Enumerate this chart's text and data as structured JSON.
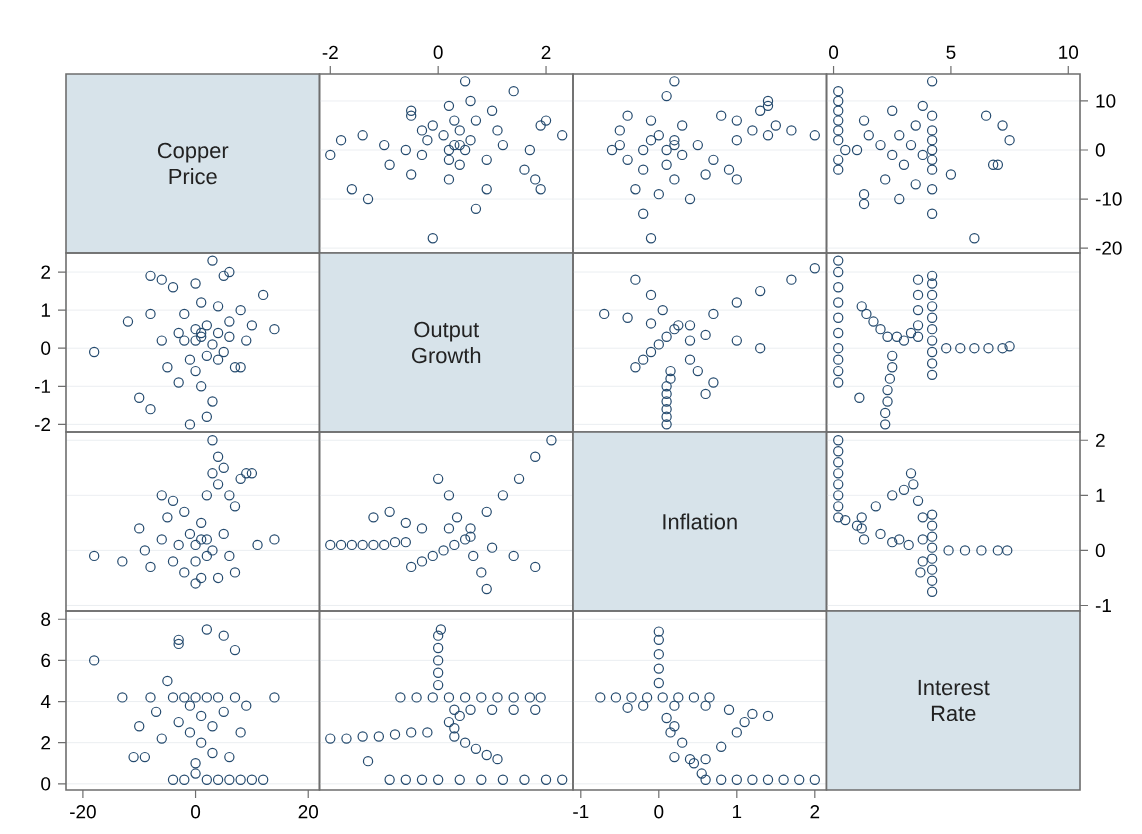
{
  "chart_data": [
    {
      "type": "other",
      "title": "Copper Price",
      "color": "#d7e3ea"
    },
    {
      "type": "scatter",
      "marker": "circle",
      "color": "#244a6e",
      "grid": "y",
      "tick_labels": "x",
      "xlim": [
        -2.2,
        2.5
      ],
      "ylim": [
        -21,
        15.5
      ],
      "xticks": [
        -2,
        0,
        2
      ],
      "yticks": [
        -20,
        -10,
        0,
        10
      ],
      "x": [
        -0.1,
        0.7,
        -1.3,
        1.9,
        -1.6,
        1.8,
        0.9,
        0.2,
        -0.5,
        1.6,
        -0.9,
        0.9,
        0.2,
        -0.3,
        1.7,
        0.5,
        -0.6,
        0.3,
        1.2,
        0.6,
        -0.2,
        -1.8,
        0.1,
        2.3,
        -1.4,
        1.1,
        0.4,
        1.9,
        -0.1,
        2.0,
        0.7,
        -0.5,
        1.0,
        -0.5,
        0.2,
        0.6,
        1.4,
        0.5,
        -2.0,
        -1.0,
        0.2,
        0.4,
        0.4,
        -0.3,
        0.3
      ],
      "values": [
        -18,
        -12,
        -10,
        -8,
        -8,
        -6,
        -8,
        -6,
        -5,
        -4,
        -3,
        -2,
        -2,
        -1,
        0,
        0,
        0,
        1,
        1,
        2,
        2,
        2,
        3,
        3,
        3,
        4,
        4,
        5,
        5,
        6,
        6,
        7,
        8,
        8,
        9,
        10,
        12,
        14,
        -1,
        1,
        0,
        1,
        -3,
        4,
        6
      ]
    },
    {
      "type": "scatter",
      "marker": "circle",
      "color": "#244a6e",
      "grid": "y",
      "tick_labels": false,
      "xlim": [
        -1.1,
        2.15
      ],
      "ylim": [
        -21,
        15.5
      ],
      "yticks": [
        -20,
        -10,
        0,
        10
      ],
      "x": [
        -0.1,
        -0.2,
        0.4,
        0.0,
        -0.3,
        0.2,
        0.6,
        -0.2,
        0.1,
        0.7,
        -0.4,
        0.3,
        -0.2,
        0.1,
        0.5,
        -0.5,
        0.2,
        -0.1,
        0.0,
        2.0,
        1.7,
        1.2,
        1.5,
        0.3,
        1.0,
        -0.1,
        0.8,
        -0.4,
        1.3,
        1.4,
        1.4,
        0.1,
        0.2,
        1.0,
        0.9,
        -0.6,
        1.0,
        -0.5,
        1.4,
        0.2
      ],
      "values": [
        -18,
        -13,
        -10,
        -9,
        -8,
        -6,
        -5,
        -4,
        -3,
        -2,
        -2,
        -1,
        0,
        0,
        1,
        1,
        2,
        2,
        3,
        3,
        4,
        4,
        5,
        5,
        6,
        6,
        7,
        7,
        8,
        9,
        10,
        11,
        14,
        -6,
        -4,
        0,
        2,
        4,
        3,
        1
      ]
    },
    {
      "type": "scatter",
      "marker": "circle",
      "color": "#244a6e",
      "grid": "y",
      "xlim": [
        -0.3,
        10.5
      ],
      "ylim": [
        -21,
        15.5
      ],
      "xticks": [
        0,
        5,
        10
      ],
      "yticks": [
        -20,
        -10,
        0,
        10
      ],
      "x": [
        6.0,
        4.2,
        2.8,
        1.3,
        4.2,
        3.5,
        2.2,
        5.0,
        4.2,
        0.2,
        6.8,
        7.0,
        3.0,
        4.2,
        0.2,
        2.5,
        3.8,
        4.2,
        1.0,
        0.5,
        3.3,
        2.0,
        4.2,
        7.5,
        0.2,
        2.8,
        1.5,
        4.2,
        0.2,
        7.2,
        3.5,
        0.2,
        1.3,
        6.5,
        4.2,
        0.2,
        2.5,
        3.8,
        0.2,
        0.2,
        4.2,
        1.3
      ],
      "values": [
        -18,
        -13,
        -10,
        -9,
        -8,
        -7,
        -6,
        -5,
        -4,
        -4,
        -3,
        -3,
        -3,
        -2,
        -2,
        -1,
        -1,
        0,
        0,
        0,
        1,
        1,
        2,
        2,
        2,
        3,
        3,
        4,
        4,
        5,
        5,
        6,
        6,
        7,
        7,
        8,
        8,
        9,
        10,
        12,
        14,
        -11
      ]
    },
    {
      "type": "scatter",
      "marker": "circle",
      "color": "#244a6e",
      "grid": "y",
      "tick_labels": "y",
      "xlim": [
        -23,
        22
      ],
      "ylim": [
        -2.2,
        2.5
      ],
      "yticks": [
        -2,
        -1,
        0,
        1,
        2
      ],
      "x": [
        -18,
        -12,
        -10,
        -8,
        -8,
        -6,
        -8,
        -6,
        -5,
        -4,
        -3,
        -2,
        -2,
        -1,
        0,
        0,
        0,
        1,
        1,
        2,
        2,
        2,
        3,
        3,
        3,
        4,
        4,
        5,
        5,
        6,
        6,
        7,
        8,
        8,
        9,
        10,
        12,
        14,
        -1,
        1,
        0,
        1,
        -3,
        4,
        6
      ],
      "values": [
        -0.1,
        0.7,
        -1.3,
        1.9,
        -1.6,
        1.8,
        0.9,
        0.2,
        -0.5,
        1.6,
        -0.9,
        0.9,
        0.2,
        -0.3,
        1.7,
        0.5,
        -0.6,
        0.3,
        1.2,
        0.6,
        -0.2,
        -1.8,
        0.1,
        2.3,
        -1.4,
        1.1,
        0.4,
        1.9,
        -0.1,
        2.0,
        0.7,
        -0.5,
        1.0,
        -0.5,
        0.2,
        0.6,
        1.4,
        0.5,
        -2.0,
        -1.0,
        0.2,
        0.4,
        0.4,
        -0.3,
        0.3
      ]
    },
    {
      "type": "other",
      "title": "Output Growth",
      "color": "#d7e3ea"
    },
    {
      "type": "scatter",
      "marker": "circle",
      "color": "#244a6e",
      "grid": "y",
      "tick_labels": false,
      "xlim": [
        -1.1,
        2.15
      ],
      "ylim": [
        -2.2,
        2.5
      ],
      "yticks": [
        -2,
        -1,
        0,
        1,
        2
      ],
      "x": [
        0.1,
        0.1,
        0.1,
        0.1,
        0.1,
        0.1,
        0.15,
        0.15,
        0.4,
        0.7,
        1.0,
        1.3,
        1.7,
        2.0,
        0.6,
        0.7,
        0.5,
        0.4,
        1.3,
        1.0,
        0.6,
        0.2,
        -0.1,
        -0.4,
        -0.7,
        0.4,
        0.25,
        0.05,
        -0.1,
        -0.3,
        -0.3,
        -0.2,
        -0.1,
        0.0,
        0.1
      ],
      "values": [
        -2,
        -1.8,
        -1.6,
        -1.4,
        -1.2,
        -1,
        -0.8,
        -0.6,
        0.6,
        0.9,
        1.2,
        1.5,
        1.8,
        2.1,
        -1.2,
        -0.9,
        -0.6,
        -0.3,
        0,
        0.2,
        0.35,
        0.5,
        0.65,
        0.8,
        0.9,
        0.2,
        0.6,
        1.0,
        1.4,
        1.8,
        -0.5,
        -0.3,
        -0.1,
        0.1,
        0.3
      ]
    },
    {
      "type": "scatter",
      "marker": "circle",
      "color": "#244a6e",
      "grid": "y",
      "tick_labels": false,
      "xlim": [
        -0.3,
        10.5
      ],
      "ylim": [
        -2.2,
        2.5
      ],
      "yticks": [
        -2,
        -1,
        0,
        1,
        2
      ],
      "x": [
        4.2,
        4.2,
        4.2,
        4.2,
        4.2,
        4.2,
        4.2,
        4.2,
        4.2,
        4.2,
        3.6,
        3.6,
        3.6,
        3.6,
        4.8,
        5.4,
        6.0,
        6.6,
        7.2,
        7.5,
        2.2,
        2.2,
        2.3,
        2.3,
        2.4,
        2.5,
        2.5,
        2.3,
        2.0,
        1.7,
        1.4,
        1.2,
        0.2,
        0.2,
        0.2,
        0.2,
        0.2,
        0.2,
        0.2,
        0.2,
        0.2,
        0.2,
        3.0,
        2.7,
        3.3,
        3.6,
        1.1
      ],
      "values": [
        -0.7,
        -0.4,
        -0.1,
        0.2,
        0.5,
        0.8,
        1.1,
        1.4,
        1.7,
        1.9,
        0.6,
        1.0,
        1.4,
        1.8,
        0,
        0,
        0,
        0,
        0,
        0.05,
        -2,
        -1.7,
        -1.4,
        -1.1,
        -0.8,
        -0.5,
        -0.2,
        0.3,
        0.5,
        0.7,
        0.9,
        1.1,
        -0.9,
        -0.6,
        -0.3,
        0,
        0.4,
        0.8,
        1.2,
        1.6,
        2.0,
        2.3,
        0.2,
        0.3,
        0.4,
        0.3,
        -1.3
      ]
    },
    {
      "type": "scatter",
      "marker": "circle",
      "color": "#244a6e",
      "grid": "y",
      "tick_labels": false,
      "xlim": [
        -23,
        22
      ],
      "ylim": [
        -1.1,
        2.15
      ],
      "yticks": [
        -1,
        0,
        1,
        2
      ],
      "x": [
        -18,
        -13,
        -10,
        -9,
        -8,
        -6,
        -5,
        -4,
        -3,
        -2,
        -2,
        -1,
        0,
        0,
        1,
        1,
        2,
        2,
        3,
        3,
        4,
        4,
        5,
        5,
        6,
        6,
        7,
        7,
        8,
        9,
        10,
        11,
        14,
        -6,
        -4,
        0,
        2,
        4,
        3,
        1
      ],
      "values": [
        -0.1,
        -0.2,
        0.4,
        0.0,
        -0.3,
        0.2,
        0.6,
        -0.2,
        0.1,
        0.7,
        -0.4,
        0.3,
        -0.2,
        0.1,
        0.5,
        -0.5,
        0.2,
        -0.1,
        0.0,
        2.0,
        1.7,
        1.2,
        1.5,
        0.3,
        1.0,
        -0.1,
        0.8,
        -0.4,
        1.3,
        1.4,
        1.4,
        0.1,
        0.2,
        1.0,
        0.9,
        -0.6,
        1.0,
        -0.5,
        1.4,
        0.2
      ]
    },
    {
      "type": "scatter",
      "marker": "circle",
      "color": "#244a6e",
      "grid": "y",
      "tick_labels": false,
      "xlim": [
        -2.2,
        2.5
      ],
      "ylim": [
        -1.1,
        2.15
      ],
      "yticks": [
        -1,
        0,
        1,
        2
      ],
      "x": [
        -2,
        -1.8,
        -1.6,
        -1.4,
        -1.2,
        -1,
        -0.8,
        -0.6,
        0.6,
        0.9,
        1.2,
        1.5,
        1.8,
        2.1,
        -1.2,
        -0.9,
        -0.6,
        -0.3,
        0,
        0.2,
        0.35,
        0.5,
        0.65,
        0.8,
        0.9,
        0.2,
        0.6,
        1.0,
        1.4,
        1.8,
        -0.5,
        -0.3,
        -0.1,
        0.1,
        0.3
      ],
      "values": [
        0.1,
        0.1,
        0.1,
        0.1,
        0.1,
        0.1,
        0.15,
        0.15,
        0.4,
        0.7,
        1.0,
        1.3,
        1.7,
        2.0,
        0.6,
        0.7,
        0.5,
        0.4,
        1.3,
        1.0,
        0.6,
        0.2,
        -0.1,
        -0.4,
        -0.7,
        0.4,
        0.25,
        0.05,
        -0.1,
        -0.3,
        -0.3,
        -0.2,
        -0.1,
        0.0,
        0.1
      ]
    },
    {
      "type": "other",
      "title": "Inflation",
      "color": "#d7e3ea"
    },
    {
      "type": "scatter",
      "marker": "circle",
      "color": "#244a6e",
      "grid": "y",
      "tick_labels": "y",
      "xlim": [
        -0.3,
        10.5
      ],
      "ylim": [
        -1.1,
        2.15
      ],
      "yticks": [
        -1,
        0,
        1,
        2
      ],
      "x": [
        4.2,
        4.2,
        4.2,
        4.2,
        4.2,
        4.2,
        4.2,
        4.2,
        4.9,
        5.6,
        6.3,
        7.0,
        7.4,
        3.7,
        3.8,
        3.8,
        3.8,
        3.6,
        3.4,
        3.3,
        3.2,
        2.8,
        2.5,
        1.3,
        1.2,
        1.2,
        1.8,
        2.5,
        3.0,
        2.0,
        1.0,
        0.5,
        0.2,
        0.2,
        0.2,
        0.2,
        0.2,
        0.2,
        0.2,
        0.2
      ],
      "values": [
        -0.75,
        -0.55,
        -0.35,
        -0.15,
        0.05,
        0.25,
        0.45,
        0.65,
        0,
        0,
        0,
        0,
        0,
        -0.4,
        -0.2,
        0.2,
        0.6,
        0.9,
        1.2,
        1.4,
        0.1,
        0.2,
        0.15,
        0.2,
        0.4,
        0.6,
        0.8,
        1.0,
        1.1,
        0.3,
        0.45,
        0.55,
        0.6,
        0.8,
        1.0,
        1.2,
        1.4,
        1.6,
        1.8,
        2.0
      ]
    },
    {
      "type": "scatter",
      "marker": "circle",
      "color": "#244a6e",
      "grid": "y",
      "xlim": [
        -23,
        22
      ],
      "ylim": [
        -0.3,
        8.4
      ],
      "xticks": [
        -20,
        0,
        20
      ],
      "yticks": [
        0,
        2,
        4,
        6,
        8
      ],
      "x": [
        -18,
        -13,
        -10,
        -9,
        -8,
        -7,
        -6,
        -5,
        -4,
        -4,
        -3,
        -3,
        -3,
        -2,
        -2,
        -1,
        -1,
        0,
        0,
        0,
        1,
        1,
        2,
        2,
        2,
        3,
        3,
        4,
        4,
        5,
        5,
        6,
        6,
        7,
        7,
        8,
        8,
        9,
        10,
        12,
        14,
        -11
      ],
      "values": [
        6.0,
        4.2,
        2.8,
        1.3,
        4.2,
        3.5,
        2.2,
        5.0,
        4.2,
        0.2,
        6.8,
        7.0,
        3.0,
        4.2,
        0.2,
        2.5,
        3.8,
        4.2,
        1.0,
        0.5,
        3.3,
        2.0,
        4.2,
        7.5,
        0.2,
        2.8,
        1.5,
        4.2,
        0.2,
        7.2,
        3.5,
        0.2,
        1.3,
        6.5,
        4.2,
        0.2,
        2.5,
        3.8,
        0.2,
        0.2,
        4.2,
        1.3
      ]
    },
    {
      "type": "scatter",
      "marker": "circle",
      "color": "#244a6e",
      "grid": "y",
      "tick_labels": false,
      "xlim": [
        -2.2,
        2.5
      ],
      "ylim": [
        -0.3,
        8.4
      ],
      "yticks": [
        0,
        2,
        4,
        6,
        8
      ],
      "x": [
        -0.7,
        -0.4,
        -0.1,
        0.2,
        0.5,
        0.8,
        1.1,
        1.4,
        1.7,
        1.9,
        0.6,
        1.0,
        1.4,
        1.8,
        0,
        0,
        0,
        0,
        0,
        0.05,
        -2,
        -1.7,
        -1.4,
        -1.1,
        -0.8,
        -0.5,
        -0.2,
        0.3,
        0.5,
        0.7,
        0.9,
        1.1,
        -0.9,
        -0.6,
        -0.3,
        0,
        0.4,
        0.8,
        1.2,
        1.6,
        2.0,
        2.3,
        0.2,
        0.3,
        0.4,
        0.3,
        -1.3
      ],
      "values": [
        4.2,
        4.2,
        4.2,
        4.2,
        4.2,
        4.2,
        4.2,
        4.2,
        4.2,
        4.2,
        3.6,
        3.6,
        3.6,
        3.6,
        4.8,
        5.4,
        6.0,
        6.6,
        7.2,
        7.5,
        2.2,
        2.2,
        2.3,
        2.3,
        2.4,
        2.5,
        2.5,
        2.3,
        2.0,
        1.7,
        1.4,
        1.2,
        0.2,
        0.2,
        0.2,
        0.2,
        0.2,
        0.2,
        0.2,
        0.2,
        0.2,
        0.2,
        3.0,
        2.7,
        3.3,
        3.6,
        1.1
      ]
    },
    {
      "type": "scatter",
      "marker": "circle",
      "color": "#244a6e",
      "grid": "y",
      "tick_labels": "x",
      "xlim": [
        -1.1,
        2.15
      ],
      "ylim": [
        -0.3,
        8.4
      ],
      "xticks": [
        -1,
        0,
        1,
        2
      ],
      "yticks": [
        0,
        2,
        4,
        6,
        8
      ],
      "x": [
        -0.75,
        -0.55,
        -0.35,
        -0.15,
        0.05,
        0.25,
        0.45,
        0.65,
        0,
        0,
        0,
        0,
        0,
        -0.4,
        -0.2,
        0.2,
        0.6,
        0.9,
        1.2,
        1.4,
        0.1,
        0.2,
        0.15,
        0.2,
        0.4,
        0.6,
        0.8,
        1.0,
        1.1,
        0.3,
        0.45,
        0.55,
        0.6,
        0.8,
        1.0,
        1.2,
        1.4,
        1.6,
        1.8,
        2.0
      ],
      "values": [
        4.2,
        4.2,
        4.2,
        4.2,
        4.2,
        4.2,
        4.2,
        4.2,
        4.9,
        5.6,
        6.3,
        7.0,
        7.4,
        3.7,
        3.8,
        3.8,
        3.8,
        3.6,
        3.4,
        3.3,
        3.2,
        2.8,
        2.5,
        1.3,
        1.2,
        1.2,
        1.8,
        2.5,
        3.0,
        2.0,
        1.0,
        0.5,
        0.2,
        0.2,
        0.2,
        0.2,
        0.2,
        0.2,
        0.2,
        0.2
      ]
    },
    {
      "type": "other",
      "title": "Interest Rate",
      "color": "#d7e3ea"
    }
  ]
}
